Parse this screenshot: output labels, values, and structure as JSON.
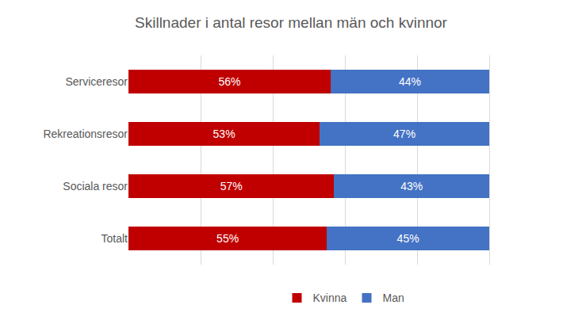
{
  "chart_data": {
    "type": "bar",
    "title": "Skillnader i antal resor mellan män och kvinnor",
    "orientation": "horizontal",
    "stacked": true,
    "data_labels": true,
    "grid": true,
    "legend": "bottom",
    "tick_labels": "y",
    "categories": [
      "Serviceresor",
      "Rekreationsresor",
      "Sociala resor",
      "Totalt"
    ],
    "series": [
      {
        "name": "Kvinna",
        "color": "#c00000",
        "values": [
          56,
          53,
          57,
          55
        ],
        "value_labels": [
          "56%",
          "53%",
          "57%",
          "55%"
        ]
      },
      {
        "name": "Man",
        "color": "#4472c4",
        "values": [
          44,
          47,
          43,
          45
        ],
        "value_labels": [
          "44%",
          "47%",
          "43%",
          "45%"
        ]
      }
    ],
    "xlim": [
      0,
      120
    ],
    "xticks": [
      0,
      20,
      40,
      60,
      80,
      100,
      120
    ]
  }
}
